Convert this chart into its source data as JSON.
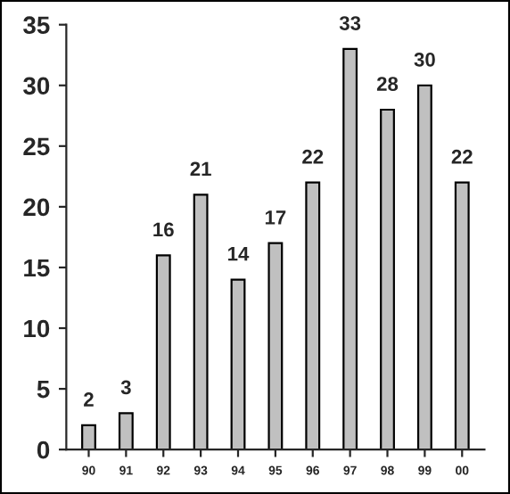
{
  "chart_data": {
    "type": "bar",
    "categories": [
      "90",
      "91",
      "92",
      "93",
      "94",
      "95",
      "96",
      "97",
      "98",
      "99",
      "00"
    ],
    "values": [
      2,
      3,
      16,
      21,
      14,
      17,
      22,
      33,
      28,
      30,
      22
    ],
    "color": "#c0c0c0",
    "ylim": [
      0,
      35
    ],
    "yticks": [
      0,
      5,
      10,
      15,
      20,
      25,
      30,
      35
    ],
    "data_labels": true,
    "grid": false,
    "legend": false
  }
}
